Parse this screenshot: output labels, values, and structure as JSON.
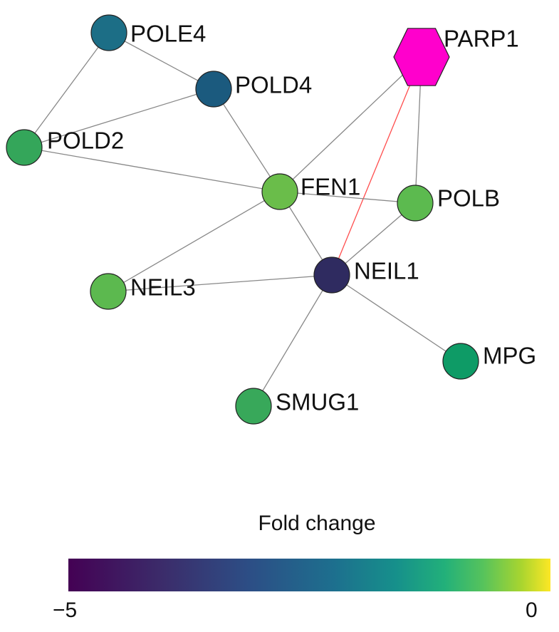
{
  "nodes": [
    {
      "id": "POLE4",
      "label": "POLE4",
      "color": "#1c6e86",
      "shape": "circle"
    },
    {
      "id": "POLD4",
      "label": "POLD4",
      "color": "#1b5a7e",
      "shape": "circle"
    },
    {
      "id": "POLD2",
      "label": "POLD2",
      "color": "#34a65a",
      "shape": "circle"
    },
    {
      "id": "PARP1",
      "label": "PARP1",
      "color": "#ff00cc",
      "shape": "hexagon"
    },
    {
      "id": "FEN1",
      "label": "FEN1",
      "color": "#6abd4a",
      "shape": "circle"
    },
    {
      "id": "POLB",
      "label": "POLB",
      "color": "#5cba4f",
      "shape": "circle"
    },
    {
      "id": "NEIL1",
      "label": "NEIL1",
      "color": "#2f2b60",
      "shape": "circle"
    },
    {
      "id": "NEIL3",
      "label": "NEIL3",
      "color": "#5cb94f",
      "shape": "circle"
    },
    {
      "id": "MPG",
      "label": "MPG",
      "color": "#0e9b66",
      "shape": "circle"
    },
    {
      "id": "SMUG1",
      "label": "SMUG1",
      "color": "#38a85a",
      "shape": "circle"
    }
  ],
  "edges": [
    {
      "source": "POLE4",
      "target": "POLD4",
      "color": "#888888"
    },
    {
      "source": "POLE4",
      "target": "POLD2",
      "color": "#888888"
    },
    {
      "source": "POLD4",
      "target": "POLD2",
      "color": "#888888"
    },
    {
      "source": "POLD4",
      "target": "FEN1",
      "color": "#888888"
    },
    {
      "source": "POLD2",
      "target": "FEN1",
      "color": "#888888"
    },
    {
      "source": "PARP1",
      "target": "FEN1",
      "color": "#888888"
    },
    {
      "source": "PARP1",
      "target": "POLB",
      "color": "#888888"
    },
    {
      "source": "PARP1",
      "target": "NEIL1",
      "color": "#ff4d4d"
    },
    {
      "source": "FEN1",
      "target": "POLB",
      "color": "#888888"
    },
    {
      "source": "FEN1",
      "target": "NEIL1",
      "color": "#888888"
    },
    {
      "source": "FEN1",
      "target": "NEIL3",
      "color": "#888888"
    },
    {
      "source": "POLB",
      "target": "NEIL1",
      "color": "#888888"
    },
    {
      "source": "NEIL1",
      "target": "NEIL3",
      "color": "#888888"
    },
    {
      "source": "NEIL1",
      "target": "MPG",
      "color": "#888888"
    },
    {
      "source": "NEIL1",
      "target": "SMUG1",
      "color": "#888888"
    }
  ],
  "legend": {
    "title": "Fold change",
    "min_label": "−5",
    "max_label": "0"
  }
}
